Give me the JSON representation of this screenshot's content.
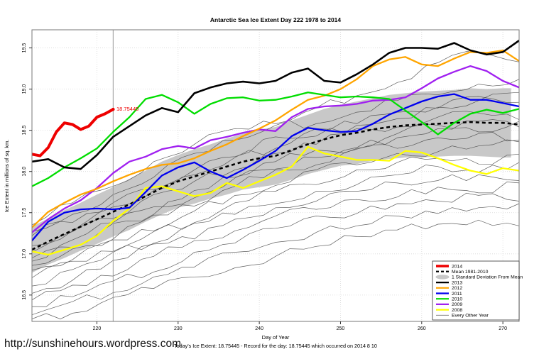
{
  "page": {
    "background": "#FFFFFF"
  },
  "footer": {
    "url": "http://sunshinehours.wordpress.com",
    "today_line": "Today's Ice Extent: 18.75445 - Record for the day: 18.75445 which occurred on 2014 8 10"
  },
  "legend": {
    "items": [
      {
        "label": "2014",
        "color": "#EE0000",
        "style": "thick"
      },
      {
        "label": "Mean 1981-2010",
        "color": "#000000",
        "style": "dashed"
      },
      {
        "label": "1 Standard Deviation From Mean",
        "color": "#C8C8C8",
        "style": "band"
      },
      {
        "label": "2013",
        "color": "#000000",
        "style": "line"
      },
      {
        "label": "2012",
        "color": "#FFA500",
        "style": "line"
      },
      {
        "label": "2011",
        "color": "#0000EE",
        "style": "line"
      },
      {
        "label": "2010",
        "color": "#00DD00",
        "style": "line"
      },
      {
        "label": "2009",
        "color": "#A020F0",
        "style": "line"
      },
      {
        "label": "2008",
        "color": "#FFFF00",
        "style": "line"
      },
      {
        "label": "Every Other Year",
        "color": "#777777",
        "style": "thin"
      }
    ]
  },
  "chart_data": {
    "type": "line",
    "title": "Antarctic Sea Ice Extent Day 222 1978 to 2014",
    "xlabel": "Day of Year",
    "ylabel": "Ice Extent in millions of sq. km.",
    "xlim": [
      212,
      272
    ],
    "ylim": [
      16.18,
      19.72
    ],
    "xticks": [
      220,
      230,
      240,
      250,
      260,
      270
    ],
    "yticks": [
      16.5,
      17.0,
      17.5,
      18.0,
      18.5,
      19.0,
      19.5
    ],
    "grid": "dotted",
    "legend_position": "bottom-right",
    "vline_x": 222,
    "annotation": {
      "x": 222,
      "y": 18.75445,
      "text": "18.75445",
      "color": "#EE0000"
    },
    "x": [
      212,
      214,
      216,
      218,
      220,
      222,
      224,
      226,
      228,
      230,
      232,
      234,
      236,
      238,
      240,
      242,
      244,
      246,
      248,
      250,
      252,
      254,
      256,
      258,
      260,
      262,
      264,
      266,
      268,
      270,
      272
    ],
    "series": [
      {
        "name": "2013",
        "color": "#000000",
        "width": 2.6,
        "values": [
          18.12,
          18.15,
          18.05,
          18.03,
          18.2,
          18.42,
          18.55,
          18.68,
          18.77,
          18.72,
          18.95,
          19.02,
          19.07,
          19.09,
          19.07,
          19.1,
          19.2,
          19.25,
          19.1,
          19.08,
          19.18,
          19.3,
          19.44,
          19.5,
          19.5,
          19.49,
          19.56,
          19.47,
          19.42,
          19.45,
          19.59
        ]
      },
      {
        "name": "2012",
        "color": "#FFA500",
        "width": 2.3,
        "values": [
          17.32,
          17.51,
          17.62,
          17.72,
          17.79,
          17.88,
          17.96,
          18.03,
          18.08,
          18.1,
          18.16,
          18.25,
          18.33,
          18.43,
          18.52,
          18.62,
          18.75,
          18.87,
          18.92,
          19.0,
          19.12,
          19.28,
          19.36,
          19.39,
          19.3,
          19.28,
          19.37,
          19.45,
          19.44,
          19.47,
          19.34
        ]
      },
      {
        "name": "2011",
        "color": "#0000EE",
        "width": 2.3,
        "values": [
          17.16,
          17.39,
          17.5,
          17.54,
          17.55,
          17.54,
          17.56,
          17.75,
          17.95,
          18.05,
          18.11,
          18.0,
          17.92,
          18.02,
          18.13,
          18.25,
          18.43,
          18.53,
          18.5,
          18.48,
          18.49,
          18.58,
          18.69,
          18.77,
          18.85,
          18.91,
          18.94,
          18.87,
          18.87,
          18.83,
          18.79
        ]
      },
      {
        "name": "2010",
        "color": "#00DD00",
        "width": 2.3,
        "values": [
          17.82,
          17.92,
          18.05,
          18.16,
          18.28,
          18.48,
          18.66,
          18.88,
          18.93,
          18.84,
          18.7,
          18.82,
          18.89,
          18.9,
          18.86,
          18.87,
          18.91,
          18.96,
          18.93,
          18.9,
          18.91,
          18.9,
          18.88,
          18.74,
          18.6,
          18.45,
          18.59,
          18.7,
          18.75,
          18.71,
          18.76
        ]
      },
      {
        "name": "2009",
        "color": "#A020F0",
        "width": 2.3,
        "values": [
          17.26,
          17.42,
          17.55,
          17.65,
          17.8,
          17.98,
          18.12,
          18.18,
          18.27,
          18.31,
          18.28,
          18.38,
          18.42,
          18.47,
          18.51,
          18.49,
          18.66,
          18.76,
          18.79,
          18.8,
          18.82,
          18.86,
          18.87,
          18.9,
          19.01,
          19.13,
          19.21,
          19.28,
          19.22,
          19.1,
          19.02
        ]
      },
      {
        "name": "2008",
        "color": "#FFFF00",
        "width": 2.3,
        "values": [
          17.03,
          16.99,
          17.05,
          17.11,
          17.22,
          17.4,
          17.55,
          17.8,
          17.82,
          17.76,
          17.7,
          17.74,
          17.86,
          17.8,
          17.88,
          17.96,
          18.06,
          18.3,
          18.22,
          18.18,
          18.14,
          18.14,
          18.13,
          18.25,
          18.23,
          18.16,
          18.08,
          18.01,
          17.97,
          18.04,
          18.01
        ]
      }
    ],
    "series_2014": {
      "name": "2014",
      "color": "#EE0000",
      "width": 4,
      "x": [
        212,
        213,
        214,
        215,
        216,
        217,
        218,
        219,
        220,
        221,
        222
      ],
      "values": [
        18.21,
        18.19,
        18.29,
        18.48,
        18.59,
        18.57,
        18.51,
        18.55,
        18.66,
        18.7,
        18.75445
      ]
    },
    "mean": {
      "name": "Mean 1981-2010",
      "color": "#000000",
      "width": 2.6,
      "values": [
        17.05,
        17.15,
        17.24,
        17.33,
        17.42,
        17.51,
        17.6,
        17.7,
        17.8,
        17.88,
        17.94,
        18.0,
        18.06,
        18.12,
        18.16,
        18.19,
        18.26,
        18.33,
        18.39,
        18.44,
        18.47,
        18.51,
        18.54,
        18.56,
        18.57,
        18.58,
        18.59,
        18.6,
        18.59,
        18.59,
        18.57
      ]
    },
    "band": {
      "name": "1 Standard Deviation From Mean",
      "color": "#C8C8C8",
      "end_x": 271,
      "sd": [
        0.28,
        0.28,
        0.29,
        0.29,
        0.3,
        0.3,
        0.31,
        0.31,
        0.32,
        0.32,
        0.33,
        0.33,
        0.34,
        0.34,
        0.35,
        0.35,
        0.36,
        0.36,
        0.37,
        0.37,
        0.38,
        0.38,
        0.39,
        0.39,
        0.4,
        0.4,
        0.4,
        0.41,
        0.41,
        0.42,
        0.42
      ]
    },
    "other_years": {
      "name": "Every Other Year",
      "color": "#4D4D4D",
      "width": 0.7,
      "x": [
        212,
        217,
        222,
        227,
        232,
        237,
        242,
        247,
        252,
        257,
        262,
        267,
        272
      ],
      "lines": [
        [
          17.35,
          17.62,
          17.82,
          18.12,
          18.33,
          18.52,
          18.58,
          18.77,
          18.92,
          19.08,
          19.32,
          19.45,
          19.33
        ],
        [
          17.22,
          17.48,
          17.72,
          17.93,
          18.22,
          18.38,
          18.56,
          18.58,
          18.72,
          18.86,
          18.93,
          19.06,
          19.12
        ],
        [
          17.1,
          17.28,
          17.62,
          17.78,
          17.96,
          18.17,
          18.28,
          18.52,
          18.58,
          18.72,
          18.78,
          18.86,
          18.96
        ],
        [
          17.02,
          17.27,
          17.43,
          17.72,
          17.88,
          18.02,
          18.22,
          18.33,
          18.52,
          18.54,
          18.66,
          18.71,
          18.63
        ],
        [
          16.95,
          17.08,
          17.37,
          17.48,
          17.77,
          17.93,
          18.12,
          18.26,
          18.28,
          18.46,
          18.56,
          18.48,
          18.61
        ],
        [
          16.86,
          17.06,
          17.18,
          17.47,
          17.58,
          17.82,
          18.02,
          18.08,
          18.27,
          18.28,
          18.41,
          18.46,
          18.38
        ],
        [
          16.8,
          16.93,
          17.17,
          17.28,
          17.52,
          17.71,
          17.83,
          18.02,
          18.08,
          18.22,
          18.24,
          18.31,
          18.36
        ],
        [
          16.71,
          16.91,
          17.03,
          17.27,
          17.38,
          17.62,
          17.76,
          17.84,
          18.02,
          18.11,
          18.16,
          18.09,
          18.21
        ],
        [
          16.61,
          16.81,
          17.02,
          17.13,
          17.37,
          17.48,
          17.61,
          17.76,
          17.84,
          17.96,
          18.06,
          17.99,
          18.11
        ],
        [
          16.52,
          16.68,
          16.92,
          17.12,
          17.18,
          17.42,
          17.56,
          17.64,
          17.76,
          17.86,
          17.89,
          17.96,
          17.89
        ],
        [
          16.44,
          16.62,
          16.73,
          16.97,
          17.16,
          17.28,
          17.46,
          17.54,
          17.66,
          17.69,
          17.81,
          17.74,
          17.86
        ],
        [
          16.36,
          16.48,
          16.67,
          16.78,
          17.02,
          17.13,
          17.31,
          17.46,
          17.49,
          17.61,
          17.64,
          17.71,
          17.64
        ],
        [
          16.26,
          16.42,
          16.53,
          16.72,
          16.84,
          17.02,
          17.14,
          17.26,
          17.34,
          17.46,
          17.49,
          17.56,
          17.61
        ],
        [
          16.21,
          16.28,
          16.47,
          16.58,
          16.72,
          16.83,
          16.97,
          17.09,
          17.21,
          17.29,
          17.36,
          17.41,
          17.34
        ],
        [
          16.91,
          17.17,
          17.38,
          17.57,
          17.68,
          17.92,
          18.03,
          18.17,
          18.29,
          18.41,
          18.52,
          18.61,
          18.54
        ],
        [
          17.27,
          17.38,
          17.57,
          17.77,
          18.02,
          18.18,
          18.42,
          18.43,
          18.56,
          18.64,
          18.77,
          18.91,
          18.84
        ]
      ]
    }
  }
}
